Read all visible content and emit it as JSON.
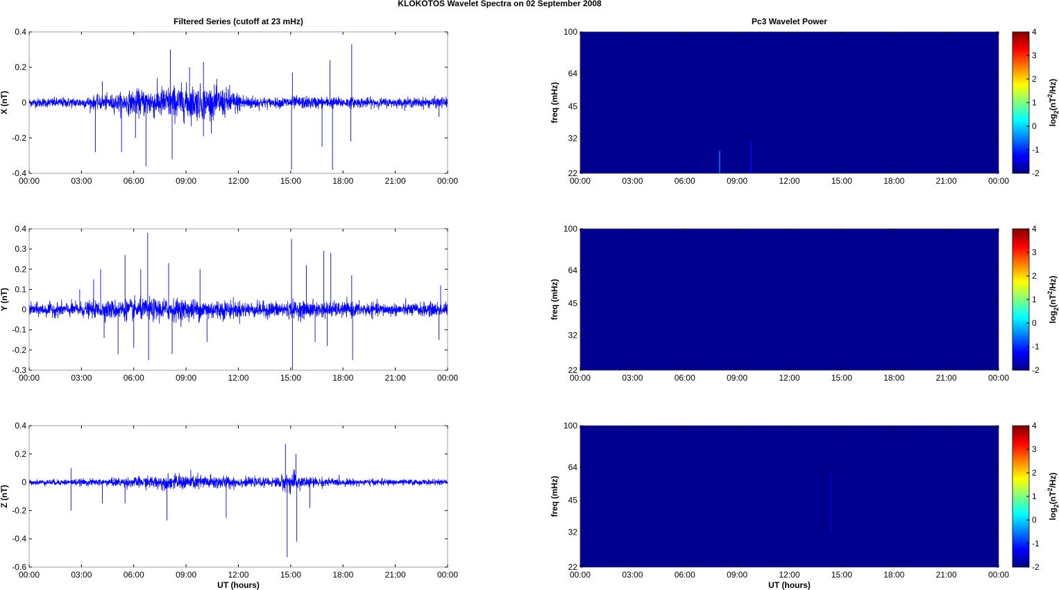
{
  "title": "KLOKOTOS Wavelet Spectra on 02 September 2008",
  "chart_data": [
    {
      "type": "line",
      "title": "Filtered Series (cutoff at 23 mHz)",
      "ylabel": "X (nT)",
      "xlabel": "",
      "xlim": [
        0,
        24
      ],
      "ylim": [
        -0.4,
        0.4
      ],
      "yticks": [
        "-0.4",
        "-0.2",
        "0",
        "0.2",
        "0.4"
      ],
      "xticks": [
        "00:00",
        "03:00",
        "06:00",
        "09:00",
        "12:00",
        "15:00",
        "18:00",
        "21:00",
        "00:00"
      ],
      "color": "#0000ff",
      "noise_envelope": [
        [
          0,
          0.02
        ],
        [
          3,
          0.025
        ],
        [
          5,
          0.04
        ],
        [
          7,
          0.07
        ],
        [
          9,
          0.08
        ],
        [
          11,
          0.07
        ],
        [
          12.5,
          0.035
        ],
        [
          14,
          0.02
        ],
        [
          15,
          0.03
        ],
        [
          18,
          0.025
        ],
        [
          21,
          0.02
        ],
        [
          24,
          0.025
        ]
      ],
      "spikes": [
        [
          3.8,
          -0.28
        ],
        [
          4.2,
          0.12
        ],
        [
          5.3,
          -0.28
        ],
        [
          6.1,
          -0.2
        ],
        [
          6.7,
          -0.36
        ],
        [
          8.1,
          0.3
        ],
        [
          8.2,
          -0.32
        ],
        [
          9.2,
          0.2
        ],
        [
          10.0,
          0.23
        ],
        [
          10.0,
          -0.19
        ],
        [
          11.5,
          0.1
        ],
        [
          15.05,
          -0.38
        ],
        [
          15.1,
          0.17
        ],
        [
          16.8,
          -0.25
        ],
        [
          17.25,
          0.24
        ],
        [
          17.4,
          -0.38
        ],
        [
          18.5,
          0.33
        ],
        [
          18.45,
          -0.22
        ],
        [
          23.5,
          -0.08
        ]
      ]
    },
    {
      "type": "line",
      "title": "",
      "ylabel": "Y (nT)",
      "xlabel": "",
      "xlim": [
        0,
        24
      ],
      "ylim": [
        -0.3,
        0.4
      ],
      "yticks": [
        "-0.3",
        "-0.2",
        "-0.1",
        "0",
        "0.1",
        "0.2",
        "0.3",
        "0.4"
      ],
      "xticks": [
        "00:00",
        "03:00",
        "06:00",
        "09:00",
        "12:00",
        "15:00",
        "18:00",
        "21:00",
        "00:00"
      ],
      "color": "#0000ff",
      "noise_envelope": [
        [
          0,
          0.025
        ],
        [
          3,
          0.03
        ],
        [
          5,
          0.04
        ],
        [
          8,
          0.045
        ],
        [
          11,
          0.04
        ],
        [
          13,
          0.03
        ],
        [
          15,
          0.035
        ],
        [
          18,
          0.03
        ],
        [
          21,
          0.025
        ],
        [
          24,
          0.03
        ]
      ],
      "spikes": [
        [
          2.9,
          0.1
        ],
        [
          3.7,
          0.15
        ],
        [
          4.1,
          0.2
        ],
        [
          4.3,
          -0.14
        ],
        [
          5.1,
          -0.22
        ],
        [
          5.5,
          0.27
        ],
        [
          6.0,
          -0.19
        ],
        [
          6.4,
          0.2
        ],
        [
          6.8,
          0.38
        ],
        [
          6.85,
          -0.25
        ],
        [
          8.0,
          0.23
        ],
        [
          8.2,
          -0.22
        ],
        [
          9.8,
          0.2
        ],
        [
          10.2,
          -0.16
        ],
        [
          15.05,
          0.35
        ],
        [
          15.1,
          -0.3
        ],
        [
          15.9,
          0.22
        ],
        [
          16.4,
          -0.16
        ],
        [
          16.9,
          0.29
        ],
        [
          17.3,
          0.28
        ],
        [
          17.1,
          -0.18
        ],
        [
          18.55,
          -0.25
        ],
        [
          18.5,
          0.17
        ],
        [
          23.6,
          0.12
        ],
        [
          23.5,
          -0.15
        ]
      ]
    },
    {
      "type": "line",
      "title": "",
      "ylabel": "Z (nT)",
      "xlabel": "UT (hours)",
      "xlim": [
        0,
        24
      ],
      "ylim": [
        -0.6,
        0.4
      ],
      "yticks": [
        "-0.6",
        "-0.4",
        "-0.2",
        "0",
        "0.2",
        "0.4"
      ],
      "xticks": [
        "00:00",
        "03:00",
        "06:00",
        "09:00",
        "12:00",
        "15:00",
        "18:00",
        "21:00",
        "00:00"
      ],
      "color": "#0000ff",
      "noise_envelope": [
        [
          0,
          0.015
        ],
        [
          4,
          0.02
        ],
        [
          7,
          0.035
        ],
        [
          9,
          0.045
        ],
        [
          11,
          0.04
        ],
        [
          12.5,
          0.025
        ],
        [
          14,
          0.025
        ],
        [
          15,
          0.06
        ],
        [
          16,
          0.03
        ],
        [
          18,
          0.02
        ],
        [
          24,
          0.015
        ]
      ],
      "spikes": [
        [
          2.4,
          -0.2
        ],
        [
          2.4,
          0.1
        ],
        [
          4.2,
          -0.15
        ],
        [
          5.5,
          -0.15
        ],
        [
          7.9,
          -0.27
        ],
        [
          11.3,
          -0.25
        ],
        [
          14.7,
          0.27
        ],
        [
          14.8,
          -0.53
        ],
        [
          15.3,
          0.2
        ],
        [
          15.35,
          -0.42
        ],
        [
          16.1,
          -0.18
        ]
      ]
    },
    {
      "type": "heatmap",
      "title": "Pc3 Wavelet Power",
      "ylabel": "freq (mHz)",
      "xlabel": "",
      "xlim": [
        0,
        24
      ],
      "ylim": [
        22,
        100
      ],
      "yscale": "log",
      "yticks": [
        "22",
        "32",
        "45",
        "64",
        "100"
      ],
      "xticks": [
        "00:00",
        "03:00",
        "06:00",
        "09:00",
        "12:00",
        "15:00",
        "18:00",
        "21:00",
        "00:00"
      ],
      "colorbar": {
        "label": "log2(nT2/Hz)",
        "range": [
          -2,
          4
        ],
        "ticks": [
          "-2",
          "-1",
          "0",
          "1",
          "2",
          "3",
          "4"
        ]
      },
      "background_value": -2,
      "features": [
        [
          7.0,
          22,
          26,
          -1.8
        ],
        [
          8.0,
          22,
          28,
          -0.6
        ],
        [
          9.8,
          22,
          31,
          -1.2
        ],
        [
          10.9,
          22,
          24,
          -1.8
        ]
      ]
    },
    {
      "type": "heatmap",
      "title": "",
      "ylabel": "freq (mHz)",
      "xlabel": "",
      "xlim": [
        0,
        24
      ],
      "ylim": [
        22,
        100
      ],
      "yscale": "log",
      "yticks": [
        "22",
        "32",
        "45",
        "64",
        "100"
      ],
      "xticks": [
        "00:00",
        "03:00",
        "06:00",
        "09:00",
        "12:00",
        "15:00",
        "18:00",
        "21:00",
        "00:00"
      ],
      "colorbar": {
        "label": "log2(nT2/Hz)",
        "range": [
          -2,
          4
        ],
        "ticks": [
          "-2",
          "-1",
          "0",
          "1",
          "2",
          "3",
          "4"
        ]
      },
      "background_value": -2,
      "features": []
    },
    {
      "type": "heatmap",
      "title": "",
      "ylabel": "freq (mHz)",
      "xlabel": "UT (hours)",
      "xlim": [
        0,
        24
      ],
      "ylim": [
        22,
        100
      ],
      "yscale": "log",
      "yticks": [
        "22",
        "32",
        "45",
        "64",
        "100"
      ],
      "xticks": [
        "00:00",
        "03:00",
        "06:00",
        "09:00",
        "12:00",
        "15:00",
        "18:00",
        "21:00",
        "00:00"
      ],
      "colorbar": {
        "label": "log2(nT2/Hz)",
        "range": [
          -2,
          4
        ],
        "ticks": [
          "-2",
          "-1",
          "0",
          "1",
          "2",
          "3",
          "4"
        ]
      },
      "background_value": -2,
      "features": [
        [
          14.4,
          32,
          60,
          -1.5
        ]
      ]
    }
  ]
}
